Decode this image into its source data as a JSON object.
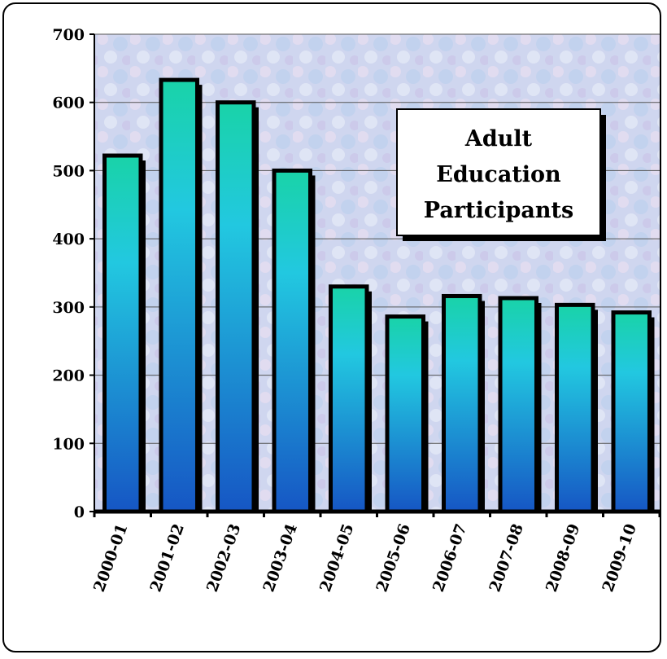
{
  "chart_data": {
    "type": "bar",
    "title_lines": [
      "Adult",
      "Education",
      "Participants"
    ],
    "categories": [
      "2000-01",
      "2001-02",
      "2002-03",
      "2003-04",
      "2004-05",
      "2005-06",
      "2006-07",
      "2007-08",
      "2008-09",
      "2009-10"
    ],
    "values": [
      522,
      633,
      600,
      500,
      330,
      286,
      316,
      313,
      303,
      292
    ],
    "ylim": [
      0,
      700
    ],
    "yticks": [
      0,
      100,
      200,
      300,
      400,
      500,
      600,
      700
    ],
    "xlabel": "",
    "ylabel": "",
    "grid": true,
    "legend": "none",
    "colors": {
      "bar_top": "#19d3a8",
      "bar_mid": "#22c8e0",
      "bar_bottom": "#1656c4",
      "bar_edge": "#000000",
      "plot_bg": "#cfd8f0"
    }
  }
}
